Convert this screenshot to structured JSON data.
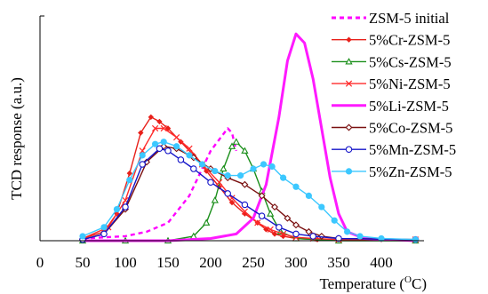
{
  "chart_data": {
    "type": "line",
    "title": "",
    "xlabel": "Temperature (",
    "xlabel_sup": "O",
    "xlabel_tail": "C)",
    "ylabel": "TCD response (a.u.)",
    "xlim": [
      0,
      450
    ],
    "xticks": [
      0,
      50,
      100,
      150,
      200,
      250,
      300,
      350,
      400
    ],
    "ylim": [
      0,
      100
    ],
    "grid": false,
    "legend_position": "right",
    "series": [
      {
        "name": "ZSM-5 initial",
        "color": "#ff00ff",
        "marker": "dashed",
        "x": [
          50,
          100,
          125,
          150,
          175,
          200,
          210,
          220,
          225,
          230
        ],
        "y": [
          1,
          2,
          4,
          8,
          20,
          40,
          45,
          50,
          48,
          40
        ]
      },
      {
        "name": "5%Cr-ZSM-5",
        "color": "#e8201a",
        "marker": "diamond",
        "x": [
          50,
          75,
          90,
          105,
          118,
          130,
          140,
          150,
          165,
          180,
          195,
          210,
          225,
          240,
          255,
          265,
          275,
          285,
          300,
          325,
          350,
          400,
          440
        ],
        "y": [
          1,
          4,
          12,
          30,
          48,
          55,
          53,
          50,
          44,
          38,
          31,
          24,
          17,
          12,
          8,
          5,
          3,
          2,
          1,
          0.5,
          0.5,
          0.5,
          0.5
        ]
      },
      {
        "name": "5%Cs-ZSM-5",
        "color": "#1a8f1a",
        "marker": "triangle",
        "x": [
          50,
          100,
          150,
          180,
          195,
          205,
          215,
          225,
          230,
          240,
          250,
          260,
          270,
          282,
          300,
          350,
          440
        ],
        "y": [
          0,
          0,
          0,
          2,
          8,
          18,
          32,
          42,
          44,
          40,
          32,
          22,
          12,
          4,
          1,
          0,
          0
        ]
      },
      {
        "name": "5%Ni-ZSM-5",
        "color": "#ff2a2a",
        "marker": "cross",
        "x": [
          50,
          80,
          100,
          120,
          135,
          145,
          160,
          175,
          190,
          210,
          225,
          240,
          255,
          270,
          285,
          300,
          320,
          350,
          440
        ],
        "y": [
          1,
          6,
          18,
          40,
          50,
          50,
          46,
          41,
          34,
          26,
          19,
          13,
          8,
          5,
          3,
          1.5,
          1,
          0.5,
          0.5
        ]
      },
      {
        "name": "5%Li-ZSM-5",
        "color": "#ff1aff",
        "marker": "thick",
        "x": [
          50,
          150,
          200,
          230,
          250,
          265,
          280,
          290,
          300,
          310,
          320,
          330,
          340,
          350,
          360,
          380,
          440
        ],
        "y": [
          0,
          0,
          1,
          3,
          10,
          25,
          55,
          80,
          92,
          88,
          72,
          50,
          28,
          12,
          4,
          1,
          0
        ]
      },
      {
        "name": "5%Co-ZSM-5",
        "color": "#7a1010",
        "marker": "diamond-open",
        "x": [
          50,
          75,
          100,
          125,
          145,
          160,
          180,
          200,
          220,
          240,
          260,
          275,
          290,
          300,
          315,
          330,
          350,
          440
        ],
        "y": [
          0.5,
          3,
          14,
          35,
          42,
          41,
          37,
          32,
          28,
          25,
          20,
          15,
          10,
          7,
          4,
          2,
          1,
          0.5
        ]
      },
      {
        "name": "5%Mn-ZSM-5",
        "color": "#1414c8",
        "marker": "circle-open",
        "x": [
          50,
          75,
          100,
          120,
          140,
          150,
          165,
          180,
          200,
          220,
          240,
          260,
          280,
          300,
          320,
          350,
          440
        ],
        "y": [
          0.5,
          3,
          15,
          34,
          41,
          40,
          36,
          32,
          26,
          21,
          16,
          11,
          6,
          3,
          2,
          1,
          0.5
        ]
      },
      {
        "name": "5%Zn-ZSM-5",
        "color": "#3cc8ff",
        "marker": "circle-filled",
        "x": [
          50,
          75,
          90,
          105,
          120,
          135,
          145,
          160,
          175,
          190,
          205,
          220,
          235,
          250,
          262,
          272,
          285,
          300,
          315,
          330,
          345,
          360,
          375,
          400,
          440
        ],
        "y": [
          2,
          6,
          14,
          27,
          38,
          43,
          44,
          42,
          38,
          34,
          31,
          29,
          29,
          32,
          34,
          33,
          28,
          24,
          20,
          15,
          9,
          4,
          2,
          1,
          0.5
        ]
      }
    ]
  }
}
